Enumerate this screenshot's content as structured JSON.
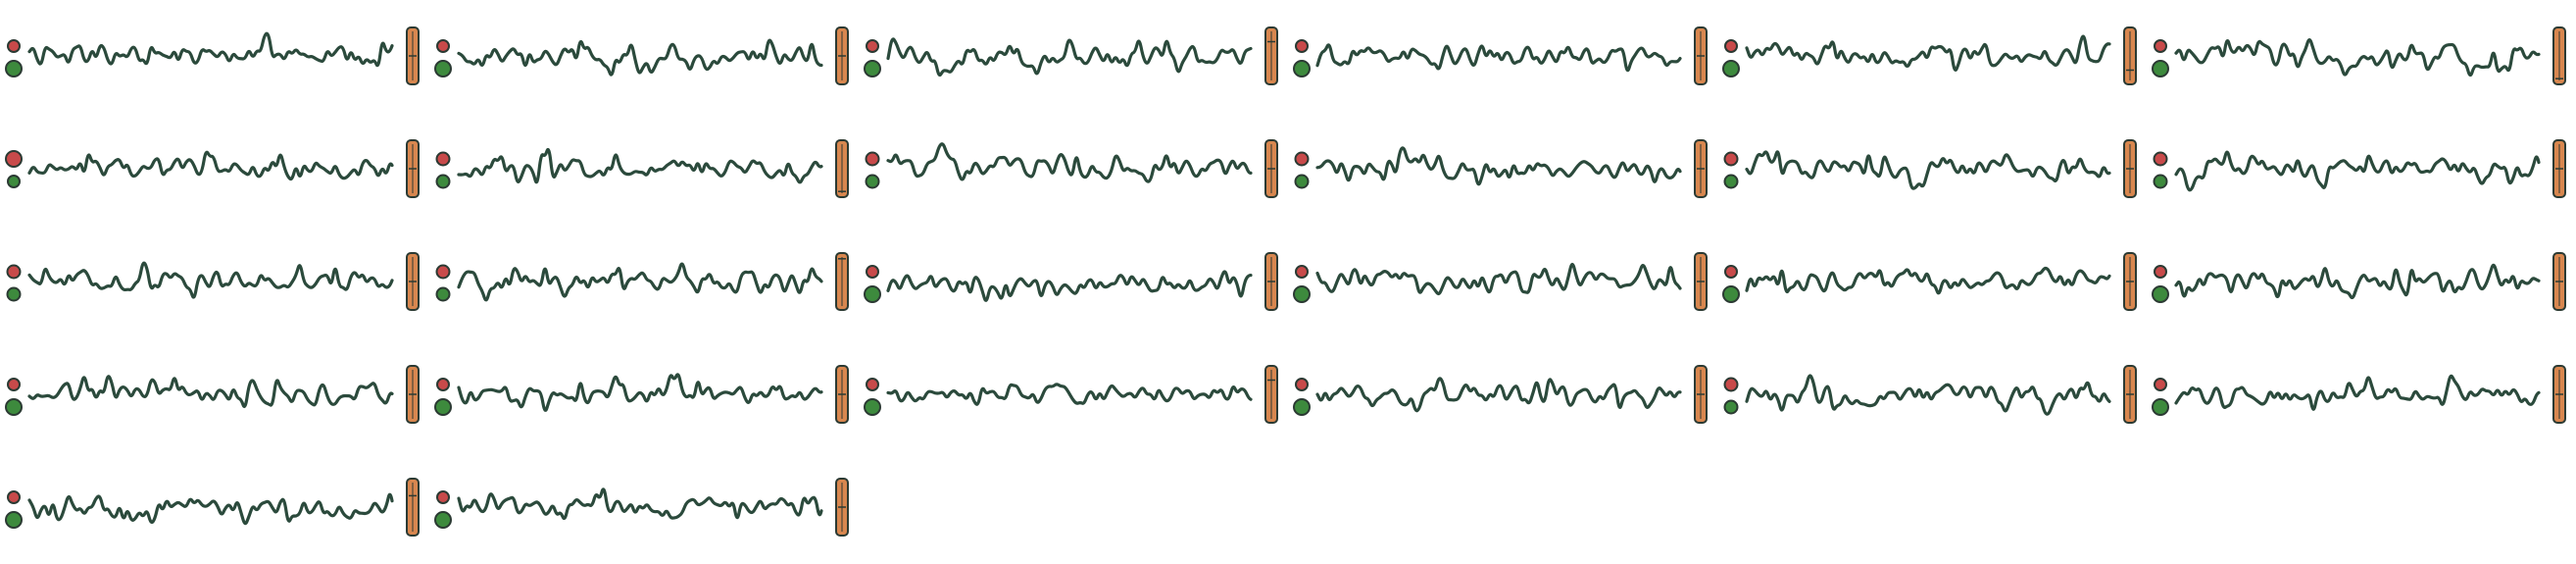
{
  "colors": {
    "background": "#ffffff",
    "waveform": "#2b4a3c",
    "outline": "#2b3a33",
    "fader_fill": "#d8874f",
    "red_dot": "#c84a4a",
    "green_dot": "#3d8a3d"
  },
  "icons": {
    "status_top": "red-dot-icon",
    "status_bottom": "green-dot-icon",
    "fader": "vertical-fader-icon"
  },
  "tracks": [
    {
      "seed": 11,
      "fader_level": 0.5,
      "dots": "small-large"
    },
    {
      "seed": 23,
      "fader_level": 0.5,
      "dots": "small-large"
    },
    {
      "seed": 37,
      "fader_level": 0.75,
      "dots": "small-large"
    },
    {
      "seed": 41,
      "fader_level": 0.5,
      "dots": "small-large"
    },
    {
      "seed": 53,
      "fader_level": 0.25,
      "dots": "small-large"
    },
    {
      "seed": 67,
      "fader_level": 0.1,
      "dots": "small-large"
    },
    {
      "seed": 71,
      "fader_level": 0.5,
      "dots": "large-small"
    },
    {
      "seed": 83,
      "fader_level": 0.1,
      "dots": "small-small"
    },
    {
      "seed": 97,
      "fader_level": 0.5,
      "dots": "small-small"
    },
    {
      "seed": 101,
      "fader_level": 0.5,
      "dots": "small-small"
    },
    {
      "seed": 113,
      "fader_level": 0.5,
      "dots": "small-small"
    },
    {
      "seed": 127,
      "fader_level": 0.5,
      "dots": "small-small"
    },
    {
      "seed": 131,
      "fader_level": 0.5,
      "dots": "small-small"
    },
    {
      "seed": 149,
      "fader_level": 0.9,
      "dots": "small-small"
    },
    {
      "seed": 151,
      "fader_level": 0.5,
      "dots": "small-large"
    },
    {
      "seed": 163,
      "fader_level": 0.5,
      "dots": "small-large"
    },
    {
      "seed": 173,
      "fader_level": 0.5,
      "dots": "small-large"
    },
    {
      "seed": 181,
      "fader_level": 0.5,
      "dots": "small-large"
    },
    {
      "seed": 191,
      "fader_level": 0.5,
      "dots": "small-large"
    },
    {
      "seed": 197,
      "fader_level": 0.5,
      "dots": "small-large"
    },
    {
      "seed": 211,
      "fader_level": 0.75,
      "dots": "small-large"
    },
    {
      "seed": 223,
      "fader_level": 0.5,
      "dots": "small-large"
    },
    {
      "seed": 227,
      "fader_level": 0.5,
      "dots": "small-small"
    },
    {
      "seed": 239,
      "fader_level": 0.5,
      "dots": "small-large"
    },
    {
      "seed": 241,
      "fader_level": 0.7,
      "dots": "small-large"
    },
    {
      "seed": 251,
      "fader_level": 0.5,
      "dots": "small-large"
    }
  ]
}
